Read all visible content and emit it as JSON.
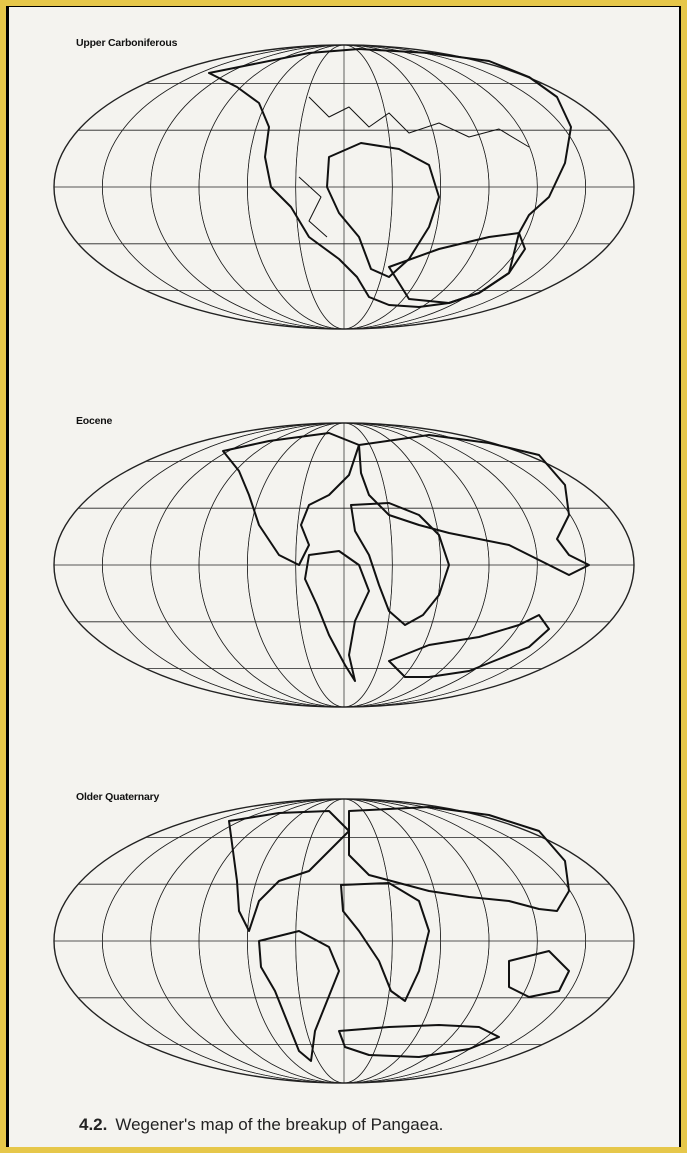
{
  "figure": {
    "maps": [
      {
        "label": "Upper Carboniferous"
      },
      {
        "label": "Eocene"
      },
      {
        "label": "Older Quaternary"
      }
    ],
    "caption": {
      "number": "4.2.",
      "text": "Wegener's map of the breakup of Pangaea."
    },
    "colors": {
      "frame": "#e6c74a",
      "paper": "#f4f3ef",
      "ink": "#111111"
    }
  }
}
